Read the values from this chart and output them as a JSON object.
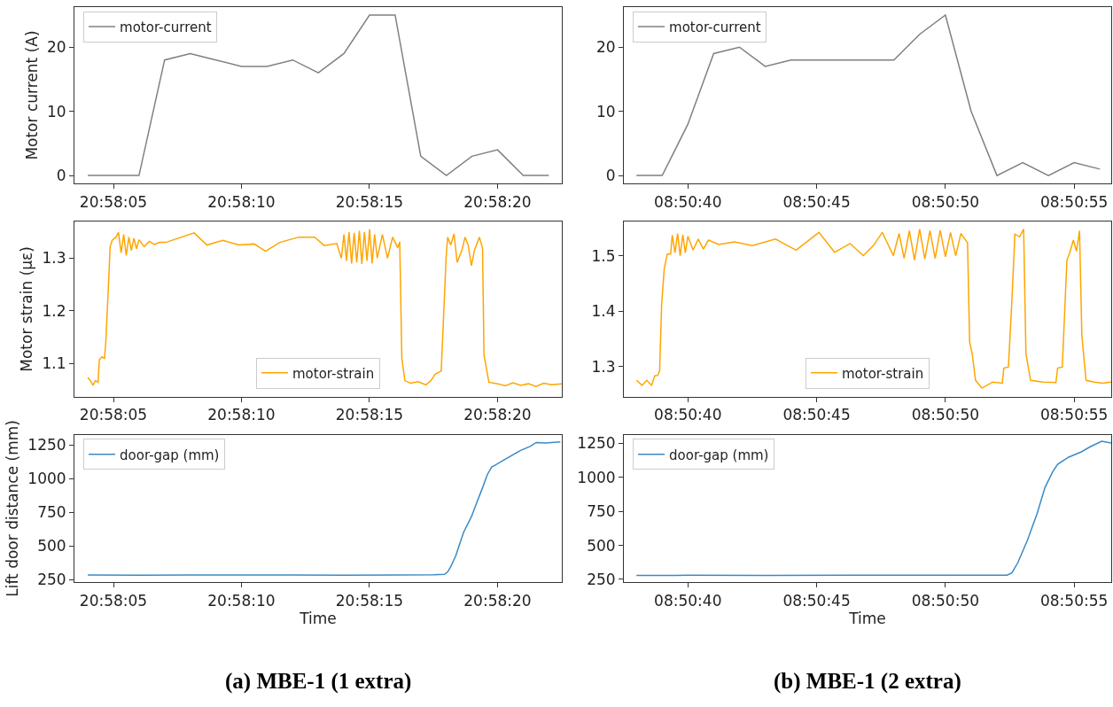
{
  "chart_data": [
    {
      "type": "line",
      "ylabel": "Motor current (A)",
      "legend": "top left",
      "xlim": [
        20.967633,
        20.972919
      ],
      "xticks": [
        {
          "value": 20.968056,
          "label": "20:58:05"
        },
        {
          "value": 20.969444,
          "label": "20:58:10"
        },
        {
          "value": 20.970833,
          "label": "20:58:15"
        },
        {
          "value": 20.972222,
          "label": "20:58:20"
        }
      ],
      "ylim": [
        -1.25,
        26.25
      ],
      "yticks": [
        0,
        10,
        20
      ],
      "series": [
        {
          "name": "motor-current",
          "color": "#808080",
          "x": [
            20.967778,
            20.968056,
            20.968333,
            20.968611,
            20.968889,
            20.969167,
            20.969444,
            20.969722,
            20.97,
            20.970278,
            20.970556,
            20.970833,
            20.971111,
            20.971389,
            20.971667,
            20.971944,
            20.972222,
            20.9725,
            20.972778
          ],
          "values": [
            0,
            0,
            0,
            18,
            19,
            18,
            17,
            17,
            18,
            16,
            19,
            25,
            25,
            3,
            0,
            3,
            4,
            0,
            0
          ]
        }
      ]
    },
    {
      "type": "line",
      "legend": "top left",
      "xlim": [
        8.843753,
        8.849011
      ],
      "xticks": [
        {
          "value": 8.844444,
          "label": "08:50:40"
        },
        {
          "value": 8.845833,
          "label": "08:50:45"
        },
        {
          "value": 8.847222,
          "label": "08:50:50"
        },
        {
          "value": 8.848611,
          "label": "08:50:55"
        }
      ],
      "ylim": [
        -1.25,
        26.25
      ],
      "yticks": [
        0,
        10,
        20
      ],
      "series": [
        {
          "name": "motor-current",
          "color": "#808080",
          "x": [
            8.843889,
            8.844167,
            8.844444,
            8.844722,
            8.845,
            8.845278,
            8.845556,
            8.845833,
            8.846111,
            8.846389,
            8.846667,
            8.846944,
            8.847222,
            8.8475,
            8.847778,
            8.848056,
            8.848333,
            8.848611,
            8.848889
          ],
          "values": [
            0,
            0,
            8,
            19,
            20,
            17,
            18,
            18,
            18,
            18,
            18,
            22,
            25,
            10,
            0,
            2,
            0,
            2,
            1
          ]
        }
      ]
    },
    {
      "type": "line",
      "ylabel": "Motor strain (με)",
      "legend": "bottom",
      "xlim": [
        20.967633,
        20.972919
      ],
      "xticks": [
        {
          "value": 20.968056,
          "label": "20:58:05"
        },
        {
          "value": 20.969444,
          "label": "20:58:10"
        },
        {
          "value": 20.970833,
          "label": "20:58:15"
        },
        {
          "value": 20.972222,
          "label": "20:58:20"
        }
      ],
      "ylim": [
        1.037,
        1.37
      ],
      "yticks": [
        1.1,
        1.2,
        1.3
      ],
      "series": [
        {
          "name": "motor-strain",
          "color": "#ffa500",
          "x": [
            20.967778,
            20.967806,
            20.967834,
            20.967861,
            20.967889,
            20.967903,
            20.967931,
            20.967959,
            20.967973,
            20.968,
            20.96802,
            20.968042,
            20.968084,
            20.968111,
            20.968139,
            20.968167,
            20.968195,
            20.968223,
            20.96825,
            20.968278,
            20.968306,
            20.968334,
            20.968389,
            20.968445,
            20.9685,
            20.968556,
            20.968623,
            20.968931,
            20.96907,
            20.969242,
            20.969414,
            20.969584,
            20.969706,
            20.969859,
            20.970067,
            20.970239,
            20.970342,
            20.970478,
            20.970528,
            20.970556,
            20.970584,
            20.970611,
            20.970639,
            20.970667,
            20.970695,
            20.970723,
            20.97075,
            20.970778,
            20.970806,
            20.970834,
            20.970861,
            20.970889,
            20.970917,
            20.970973,
            20.971028,
            20.971084,
            20.971139,
            20.971161,
            20.971184,
            20.971217,
            20.971278,
            20.971361,
            20.971445,
            20.9715,
            20.971545,
            20.971611,
            20.971664,
            20.971681,
            20.971714,
            20.97175,
            20.971784,
            20.971836,
            20.97187,
            20.971903,
            20.971939,
            20.971973,
            20.972025,
            20.972059,
            20.972075,
            20.972128,
            20.972223,
            20.972306,
            20.972389,
            20.972473,
            20.972556,
            20.972639,
            20.972723,
            20.972806,
            20.972917
          ],
          "values": [
            1.074,
            1.068,
            1.059,
            1.068,
            1.065,
            1.107,
            1.113,
            1.11,
            1.14,
            1.241,
            1.322,
            1.334,
            1.34,
            1.349,
            1.31,
            1.345,
            1.305,
            1.34,
            1.315,
            1.338,
            1.318,
            1.335,
            1.322,
            1.332,
            1.326,
            1.33,
            1.33,
            1.348,
            1.325,
            1.334,
            1.325,
            1.327,
            1.313,
            1.33,
            1.34,
            1.34,
            1.324,
            1.328,
            1.3,
            1.345,
            1.295,
            1.35,
            1.29,
            1.348,
            1.292,
            1.352,
            1.289,
            1.35,
            1.295,
            1.355,
            1.29,
            1.345,
            1.3,
            1.345,
            1.3,
            1.34,
            1.32,
            1.331,
            1.11,
            1.068,
            1.063,
            1.066,
            1.06,
            1.068,
            1.08,
            1.086,
            1.301,
            1.34,
            1.325,
            1.346,
            1.292,
            1.316,
            1.34,
            1.325,
            1.286,
            1.316,
            1.34,
            1.319,
            1.116,
            1.065,
            1.062,
            1.058,
            1.064,
            1.059,
            1.062,
            1.057,
            1.063,
            1.06,
            1.062
          ]
        }
      ]
    },
    {
      "type": "line",
      "legend": "bottom",
      "xlim": [
        8.843753,
        8.849011
      ],
      "xticks": [
        {
          "value": 8.844444,
          "label": "08:50:40"
        },
        {
          "value": 8.845833,
          "label": "08:50:45"
        },
        {
          "value": 8.847222,
          "label": "08:50:50"
        },
        {
          "value": 8.848611,
          "label": "08:50:55"
        }
      ],
      "ylim": [
        1.245,
        1.562
      ],
      "yticks": [
        1.3,
        1.4,
        1.5
      ],
      "series": [
        {
          "name": "motor-strain",
          "color": "#ffa500",
          "x": [
            8.843889,
            8.84395,
            8.844,
            8.844052,
            8.844086,
            8.844119,
            8.844139,
            8.844161,
            8.844189,
            8.844222,
            8.844258,
            8.844275,
            8.844305,
            8.844333,
            8.844361,
            8.844389,
            8.844416,
            8.844444,
            8.8445,
            8.844555,
            8.844611,
            8.844666,
            8.844777,
            8.844944,
            8.845139,
            8.845389,
            8.845611,
            8.845858,
            8.846027,
            8.846194,
            8.846336,
            8.846444,
            8.846541,
            8.846661,
            8.846722,
            8.846777,
            8.846833,
            8.846889,
            8.846944,
            8.847,
            8.847055,
            8.847111,
            8.847166,
            8.847222,
            8.847277,
            8.847333,
            8.847389,
            8.847461,
            8.847483,
            8.847511,
            8.847547,
            8.847616,
            8.847733,
            8.847836,
            8.847852,
            8.847902,
            8.847939,
            8.847972,
            8.848022,
            8.848066,
            8.848091,
            8.848141,
            8.848277,
            8.848414,
            8.848433,
            8.848483,
            8.848533,
            8.848569,
            8.848602,
            8.848636,
            8.848669,
            8.848694,
            8.848739,
            8.848825,
            8.848916,
            8.849011
          ],
          "values": [
            1.275,
            1.266,
            1.275,
            1.266,
            1.283,
            1.284,
            1.292,
            1.413,
            1.477,
            1.503,
            1.503,
            1.537,
            1.505,
            1.54,
            1.5,
            1.538,
            1.505,
            1.535,
            1.51,
            1.53,
            1.512,
            1.528,
            1.52,
            1.525,
            1.518,
            1.53,
            1.51,
            1.542,
            1.506,
            1.522,
            1.5,
            1.518,
            1.542,
            1.5,
            1.54,
            1.495,
            1.545,
            1.492,
            1.548,
            1.494,
            1.545,
            1.495,
            1.546,
            1.498,
            1.542,
            1.5,
            1.54,
            1.523,
            1.345,
            1.323,
            1.275,
            1.261,
            1.272,
            1.27,
            1.297,
            1.299,
            1.418,
            1.539,
            1.534,
            1.548,
            1.323,
            1.275,
            1.272,
            1.271,
            1.297,
            1.299,
            1.492,
            1.508,
            1.528,
            1.508,
            1.545,
            1.356,
            1.275,
            1.272,
            1.27,
            1.272
          ]
        }
      ]
    },
    {
      "type": "line",
      "ylabel": "Lift door distance (mm)",
      "xlabel": "Time",
      "legend": "top left",
      "annotations": [
        "(a) MBE-1 (1 extra)"
      ],
      "xlim": [
        20.967633,
        20.972919
      ],
      "xticks": [
        {
          "value": 20.968056,
          "label": "20:58:05"
        },
        {
          "value": 20.969444,
          "label": "20:58:10"
        },
        {
          "value": 20.970833,
          "label": "20:58:15"
        },
        {
          "value": 20.972222,
          "label": "20:58:20"
        }
      ],
      "ylim": [
        232,
        1326
      ],
      "yticks": [
        250,
        500,
        750,
        1000,
        1250
      ],
      "series": [
        {
          "name": "door-gap (mm)",
          "color": "#3a8ac6",
          "x": [
            20.967778,
            20.968334,
            20.968889,
            20.969445,
            20.97,
            20.970556,
            20.971111,
            20.971528,
            20.971647,
            20.971681,
            20.971714,
            20.971767,
            20.971853,
            20.971939,
            20.971992,
            20.972059,
            20.972111,
            20.972161,
            20.972178,
            20.9723,
            20.972473,
            20.972575,
            20.972642,
            20.972747,
            20.972903
          ],
          "values": [
            285,
            284,
            286,
            285,
            286,
            284,
            285,
            287,
            290,
            308,
            347,
            425,
            601,
            718,
            815,
            932,
            1030,
            1089,
            1093,
            1142,
            1210,
            1239,
            1268,
            1264,
            1273
          ]
        }
      ]
    },
    {
      "type": "line",
      "xlabel": "Time",
      "legend": "top left",
      "annotations": [
        "(b) MBE-1 (2 extra)"
      ],
      "xlim": [
        8.843753,
        8.849011
      ],
      "xticks": [
        {
          "value": 8.844444,
          "label": "08:50:40"
        },
        {
          "value": 8.845833,
          "label": "08:50:45"
        },
        {
          "value": 8.847222,
          "label": "08:50:50"
        },
        {
          "value": 8.848611,
          "label": "08:50:55"
        }
      ],
      "ylim": [
        229,
        1314
      ],
      "yticks": [
        250,
        500,
        750,
        1000,
        1250
      ],
      "series": [
        {
          "name": "door-gap (mm)",
          "color": "#3a8ac6",
          "x": [
            8.843889,
            8.844444,
            8.845278,
            8.846111,
            8.846944,
            8.847886,
            8.847939,
            8.848005,
            8.848108,
            8.848211,
            8.848297,
            8.84838,
            8.848433,
            8.848552,
            8.848689,
            8.848789,
            8.848908,
            8.849011
          ],
          "values": [
            279,
            280,
            279,
            281,
            280,
            281,
            298,
            375,
            540,
            733,
            927,
            1042,
            1096,
            1149,
            1188,
            1227,
            1266,
            1253
          ]
        }
      ]
    }
  ]
}
